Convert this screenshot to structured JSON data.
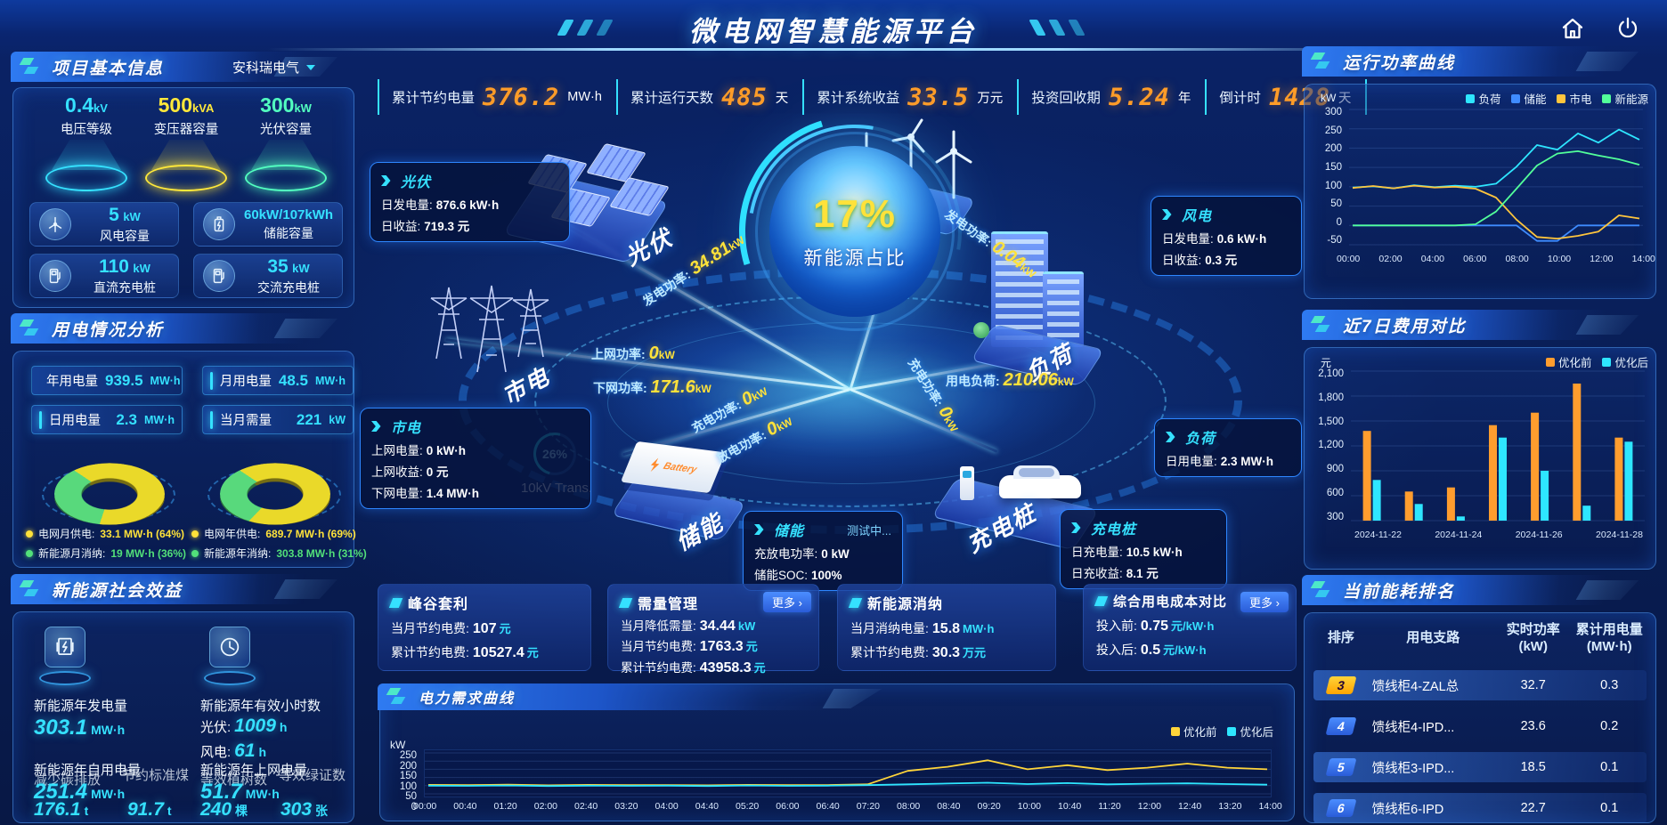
{
  "header": {
    "title": "微电网智慧能源平台"
  },
  "kpis": [
    {
      "label": "累计节约电量",
      "value": "376.2",
      "unit": "MW·h"
    },
    {
      "label": "累计运行天数",
      "value": "485",
      "unit": "天"
    },
    {
      "label": "累计系统收益",
      "value": "33.5",
      "unit": "万元"
    },
    {
      "label": "投资回收期",
      "value": "5.24",
      "unit": "年"
    },
    {
      "label": "倒计时",
      "value": "1428",
      "unit": "天"
    }
  ],
  "project_info": {
    "title": "项目基本信息",
    "company": "安科瑞电气",
    "pedestals": [
      {
        "value": "0.4",
        "unit": "kV",
        "label": "电压等级",
        "color": "#35e1ff"
      },
      {
        "value": "500",
        "unit": "kVA",
        "label": "变压器容量",
        "color": "#ffe83a"
      },
      {
        "value": "300",
        "unit": "kW",
        "label": "光伏容量",
        "color": "#52ffc0"
      }
    ],
    "cards": [
      {
        "icon": "wind-turbine-icon",
        "value": "5",
        "unit": "kW",
        "label": "风电容量"
      },
      {
        "icon": "battery-icon",
        "value": "60kW/107kWh",
        "unit": "",
        "label": "储能容量"
      },
      {
        "icon": "dc-charger-icon",
        "value": "110",
        "unit": "kW",
        "label": "直流充电桩"
      },
      {
        "icon": "ac-charger-icon",
        "value": "35",
        "unit": "kW",
        "label": "交流充电桩"
      }
    ]
  },
  "usage_analysis": {
    "title": "用电情况分析",
    "stats": [
      {
        "label": "年用电量",
        "value": "939.5",
        "unit": "MW·h"
      },
      {
        "label": "月用电量",
        "value": "48.5",
        "unit": "MW·h"
      },
      {
        "label": "日用电量",
        "value": "2.3",
        "unit": "MW·h"
      },
      {
        "label": "当月需量",
        "value": "221",
        "unit": "kW"
      }
    ],
    "month_donut": {
      "grid_pct": 64,
      "new_pct": 36,
      "legend": [
        {
          "label": "电网月供电:",
          "value": "33.1 MW·h (64%)",
          "color": "#ffe23a"
        },
        {
          "label": "新能源月消纳:",
          "value": "19 MW·h (36%)",
          "color": "#52e07a"
        }
      ]
    },
    "year_donut": {
      "grid_pct": 69,
      "new_pct": 31,
      "legend": [
        {
          "label": "电网年供电:",
          "value": "689.7 MW·h (69%)",
          "color": "#ffe23a"
        },
        {
          "label": "新能源年消纳:",
          "value": "303.8 MW·h (31%)",
          "color": "#52e07a"
        }
      ]
    }
  },
  "social_benefit": {
    "title": "新能源社会效益",
    "gen": {
      "label": "新能源年发电量",
      "value": "303.1",
      "unit": "MW·h"
    },
    "hours": {
      "label": "新能源年有效小时数",
      "pv_label": "光伏:",
      "pv_value": "1009",
      "pv_unit": "h",
      "wind_label": "风电:",
      "wind_value": "61",
      "wind_unit": "h"
    },
    "self_use": {
      "label": "新能源年自用电量",
      "value": "251.4",
      "unit": "MW·h"
    },
    "to_grid": {
      "label": "新能源年上网电量",
      "value": "51.7",
      "unit": "MW·h"
    },
    "carbon": {
      "label": "减少碳排放",
      "value": "176.1",
      "unit": "t"
    },
    "coal": {
      "label": "节约标准煤",
      "value": "91.7",
      "unit": "t"
    },
    "trees": {
      "label": "等效植树数",
      "value": "240",
      "unit": "棵"
    },
    "certs": {
      "label": "等效绿证数",
      "value": "303",
      "unit": "张"
    }
  },
  "center": {
    "percent": "17%",
    "percent_label": "新能源占比",
    "gauge": {
      "value": "26%",
      "label": "10kV Trans."
    },
    "nodes": {
      "pv": "光伏",
      "wind": "风电",
      "grid": "市电",
      "load": "负荷",
      "storage": "储能",
      "charger": "充电桩"
    },
    "flows": {
      "pv_gen": {
        "label": "发电功率:",
        "value": "34.81",
        "unit": "kW"
      },
      "wind_gen": {
        "label": "发电功率:",
        "value": "0.04",
        "unit": "kW"
      },
      "to_grid": {
        "label": "上网功率:",
        "value": "0",
        "unit": "kW"
      },
      "from_grid": {
        "label": "下网功率:",
        "value": "171.6",
        "unit": "kW"
      },
      "load": {
        "label": "用电负荷:",
        "value": "210.06",
        "unit": "kW"
      },
      "st_charge": {
        "label": "充电功率:",
        "value": "0",
        "unit": "kW"
      },
      "st_discharge": {
        "label": "放电功率:",
        "value": "0",
        "unit": "kW"
      },
      "ev_charge": {
        "label": "充电功率:",
        "value": "0",
        "unit": "kW"
      }
    },
    "boxes": {
      "pv": {
        "name": "光伏",
        "lines": [
          {
            "k": "日发电量:",
            "v": "876.6 kW·h"
          },
          {
            "k": "日收益:",
            "v": "719.3 元"
          }
        ]
      },
      "wind": {
        "name": "风电",
        "lines": [
          {
            "k": "日发电量:",
            "v": "0.6 kW·h"
          },
          {
            "k": "日收益:",
            "v": "0.3 元"
          }
        ]
      },
      "grid": {
        "name": "市电",
        "lines": [
          {
            "k": "上网电量:",
            "v": "0 kW·h"
          },
          {
            "k": "上网收益:",
            "v": "0 元"
          },
          {
            "k": "下网电量:",
            "v": "1.4 MW·h"
          }
        ]
      },
      "load": {
        "name": "负荷",
        "lines": [
          {
            "k": "日用电量:",
            "v": "2.3 MW·h"
          }
        ]
      },
      "storage": {
        "name": "储能",
        "badge": "测试中...",
        "lines": [
          {
            "k": "充放电功率:",
            "v": "0 kW"
          },
          {
            "k": "储能SOC:",
            "v": "100%"
          }
        ]
      },
      "charger": {
        "name": "充电桩",
        "lines": [
          {
            "k": "日充电量:",
            "v": "10.5 kW·h"
          },
          {
            "k": "日充收益:",
            "v": "8.1 元"
          }
        ]
      }
    }
  },
  "bottom_cards": [
    {
      "title": "峰谷套利",
      "more": "",
      "lines": [
        {
          "k": "当月节约电费:",
          "v": "107",
          "u": "元"
        },
        {
          "k": "累计节约电费:",
          "v": "10527.4",
          "u": "元"
        }
      ]
    },
    {
      "title": "需量管理",
      "more": "更多 ›",
      "lines": [
        {
          "k": "当月降低需量:",
          "v": "34.44",
          "u": "kW"
        },
        {
          "k": "当月节约电费:",
          "v": "1763.3",
          "u": "元"
        },
        {
          "k": "累计节约电费:",
          "v": "43958.3",
          "u": "元"
        }
      ]
    },
    {
      "title": "新能源消纳",
      "more": "",
      "lines": [
        {
          "k": "当月消纳电量:",
          "v": "15.8",
          "u": "MW·h"
        },
        {
          "k": "累计节约电费:",
          "v": "30.3",
          "u": "万元"
        }
      ]
    },
    {
      "title": "综合用电成本对比",
      "more": "更多 ›",
      "lines": [
        {
          "k": "投入前:",
          "v": "0.75",
          "u": "元/kW·h"
        },
        {
          "k": "投入后:",
          "v": "0.5",
          "u": "元/kW·h"
        }
      ]
    }
  ],
  "panels": {
    "demand": {
      "title": "电力需求曲线",
      "ylabel": "kW"
    },
    "power": {
      "title": "运行功率曲线",
      "ylabel": "kW"
    },
    "cost": {
      "title": "近7日费用对比",
      "ylabel": "元"
    },
    "rank": {
      "title": "当前能耗排名"
    }
  },
  "ranking": {
    "columns": [
      {
        "label": "排序",
        "sub": ""
      },
      {
        "label": "用电支路",
        "sub": ""
      },
      {
        "label": "实时功率",
        "sub": "(kW)"
      },
      {
        "label": "累计用电量",
        "sub": "(MW·h)"
      }
    ],
    "rows": [
      {
        "rank": "3",
        "branch": "馈线柜4-ZAL总",
        "power": "32.7",
        "energy": "0.3"
      },
      {
        "rank": "4",
        "branch": "馈线柜4-IPD...",
        "power": "23.6",
        "energy": "0.2"
      },
      {
        "rank": "5",
        "branch": "馈线柜3-IPD...",
        "power": "18.5",
        "energy": "0.1"
      },
      {
        "rank": "6",
        "branch": "馈线柜6-IPD",
        "power": "22.7",
        "energy": "0.1"
      }
    ]
  },
  "chart_data": [
    {
      "id": "power_curve",
      "type": "line",
      "title": "运行功率曲线",
      "ylabel": "kW",
      "ylim": [
        -50,
        300
      ],
      "yticks": [
        300,
        250,
        200,
        150,
        100,
        50,
        0,
        -50
      ],
      "legend_position": "top",
      "grid": true,
      "x": [
        "00:00",
        "01:00",
        "02:00",
        "03:00",
        "04:00",
        "05:00",
        "06:00",
        "07:00",
        "08:00",
        "09:00",
        "10:00",
        "11:00",
        "12:00",
        "13:00",
        "14:00"
      ],
      "xticks": [
        "00:00",
        "02:00",
        "04:00",
        "06:00",
        "08:00",
        "10:00",
        "12:00",
        "14:00"
      ],
      "series": [
        {
          "name": "负荷",
          "color": "#2ee6ff",
          "values": [
            98,
            101,
            96,
            104,
            99,
            103,
            100,
            108,
            152,
            208,
            196,
            238,
            214,
            248,
            222
          ]
        },
        {
          "name": "储能",
          "color": "#3f8cff",
          "values": [
            0,
            0,
            0,
            0,
            0,
            0,
            0,
            0,
            0,
            -40,
            -40,
            0,
            0,
            0,
            0
          ]
        },
        {
          "name": "市电",
          "color": "#ffc53d",
          "values": [
            97,
            102,
            96,
            103,
            98,
            100,
            95,
            72,
            15,
            -30,
            -34,
            -27,
            -16,
            26,
            18
          ]
        },
        {
          "name": "新能源",
          "color": "#52ff9a",
          "values": [
            0,
            0,
            0,
            0,
            0,
            0,
            3,
            36,
            95,
            155,
            186,
            192,
            181,
            171,
            157
          ]
        }
      ]
    },
    {
      "id": "cost_compare",
      "type": "bar",
      "title": "近7日费用对比",
      "ylabel": "元",
      "ylim": [
        300,
        2100
      ],
      "yticks": [
        2100,
        1800,
        1500,
        1200,
        900,
        600,
        300
      ],
      "legend_position": "top",
      "grid": true,
      "categories": [
        "2024-11-22",
        "2024-11-23",
        "2024-11-24",
        "2024-11-25",
        "2024-11-26",
        "2024-11-27",
        "2024-11-28"
      ],
      "xticks": [
        "2024-11-22",
        "2024-11-24",
        "2024-11-26",
        "2024-11-28"
      ],
      "series": [
        {
          "name": "优化前",
          "color": "#ff9d2e",
          "values": [
            1380,
            650,
            700,
            1450,
            1600,
            1950,
            1300
          ]
        },
        {
          "name": "优化后",
          "color": "#2ee6ff",
          "values": [
            790,
            500,
            350,
            1300,
            900,
            480,
            1250
          ]
        }
      ]
    },
    {
      "id": "demand_curve",
      "type": "line",
      "title": "电力需求曲线",
      "ylabel": "kW",
      "ylim": [
        0,
        250
      ],
      "yticks": [
        250,
        200,
        150,
        100,
        50,
        0
      ],
      "legend_position": "top-right",
      "grid": true,
      "x": [
        "00:00",
        "00:40",
        "01:20",
        "02:00",
        "02:40",
        "03:20",
        "04:00",
        "04:40",
        "05:20",
        "06:00",
        "06:40",
        "07:20",
        "08:00",
        "08:40",
        "09:20",
        "10:00",
        "10:40",
        "11:20",
        "12:00",
        "12:40",
        "13:20",
        "14:00"
      ],
      "xticks": [
        "00:00",
        "00:40",
        "01:20",
        "02:00",
        "02:40",
        "03:20",
        "04:00",
        "04:40",
        "05:20",
        "06:00",
        "06:40",
        "07:20",
        "08:00",
        "08:40",
        "09:20",
        "10:00",
        "10:40",
        "11:20",
        "12:00",
        "12:40",
        "13:20",
        "14:00"
      ],
      "series": [
        {
          "name": "优化前",
          "color": "#ffd53a",
          "values": [
            55,
            53,
            56,
            52,
            55,
            54,
            53,
            52,
            55,
            53,
            54,
            58,
            140,
            165,
            205,
            150,
            175,
            145,
            160,
            185,
            160,
            150
          ]
        },
        {
          "name": "优化后",
          "color": "#2ee6ff",
          "values": [
            50,
            49,
            51,
            48,
            50,
            49,
            50,
            48,
            51,
            49,
            50,
            53,
            58,
            63,
            68,
            60,
            66,
            58,
            62,
            64,
            60,
            56
          ]
        }
      ]
    }
  ]
}
